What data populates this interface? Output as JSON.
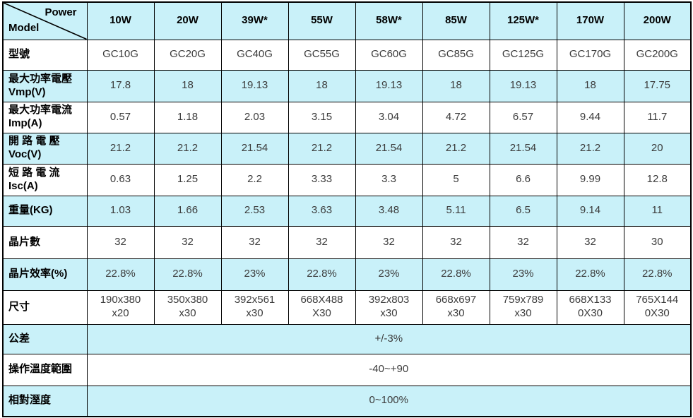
{
  "table": {
    "corner": {
      "power_label": "Power",
      "model_label": "Model"
    },
    "power_columns": [
      "10W",
      "20W",
      "39W*",
      "55W",
      "58W*",
      "85W",
      "125W*",
      "170W",
      "200W"
    ],
    "spec_rows": [
      {
        "label": "型號",
        "values": [
          "GC10G",
          "GC20G",
          "GC40G",
          "GC55G",
          "GC60G",
          "GC85G",
          "GC125G",
          "GC170G",
          "GC200G"
        ]
      },
      {
        "label": "最大功率電壓\nVmp(V)",
        "values": [
          "17.8",
          "18",
          "19.13",
          "18",
          "19.13",
          "18",
          "19.13",
          "18",
          "17.75"
        ]
      },
      {
        "label": "最大功率電流\nImp(A)",
        "values": [
          "0.57",
          "1.18",
          "2.03",
          "3.15",
          "3.04",
          "4.72",
          "6.57",
          "9.44",
          "11.7"
        ]
      },
      {
        "label": "開 路 電 壓\nVoc(V)",
        "values": [
          "21.2",
          "21.2",
          "21.54",
          "21.2",
          "21.54",
          "21.2",
          "21.54",
          "21.2",
          "20"
        ]
      },
      {
        "label": "短 路 電 流\nIsc(A)",
        "values": [
          "0.63",
          "1.25",
          "2.2",
          "3.33",
          "3.3",
          "5",
          "6.6",
          "9.99",
          "12.8"
        ]
      },
      {
        "label": "重量(KG)",
        "values": [
          "1.03",
          "1.66",
          "2.53",
          "3.63",
          "3.48",
          "5.11",
          "6.5",
          "9.14",
          "11"
        ]
      },
      {
        "label": "晶片數",
        "values": [
          "32",
          "32",
          "32",
          "32",
          "32",
          "32",
          "32",
          "32",
          "30"
        ]
      },
      {
        "label": "晶片效率(%)",
        "values": [
          "22.8%",
          "22.8%",
          "23%",
          "22.8%",
          "23%",
          "22.8%",
          "23%",
          "22.8%",
          "22.8%"
        ]
      },
      {
        "label": "尺寸",
        "values": [
          "190x380\nx20",
          "350x380\nx30",
          "392x561\nx30",
          "668X488\nX30",
          "392x803\nx30",
          "668x697\nx30",
          "759x789\nx30",
          "668X133\n0X30",
          "765X144\n0X30"
        ]
      }
    ],
    "merged_rows": [
      {
        "label": "公差",
        "value": "+/-3%"
      },
      {
        "label": "操作溫度範圍",
        "value": "-40~+90"
      },
      {
        "label": "相對溼度",
        "value": "0~100%"
      }
    ],
    "colors": {
      "band_background": "#c9f1f9",
      "border": "#000000",
      "value_text": "#3c3c3c"
    }
  }
}
